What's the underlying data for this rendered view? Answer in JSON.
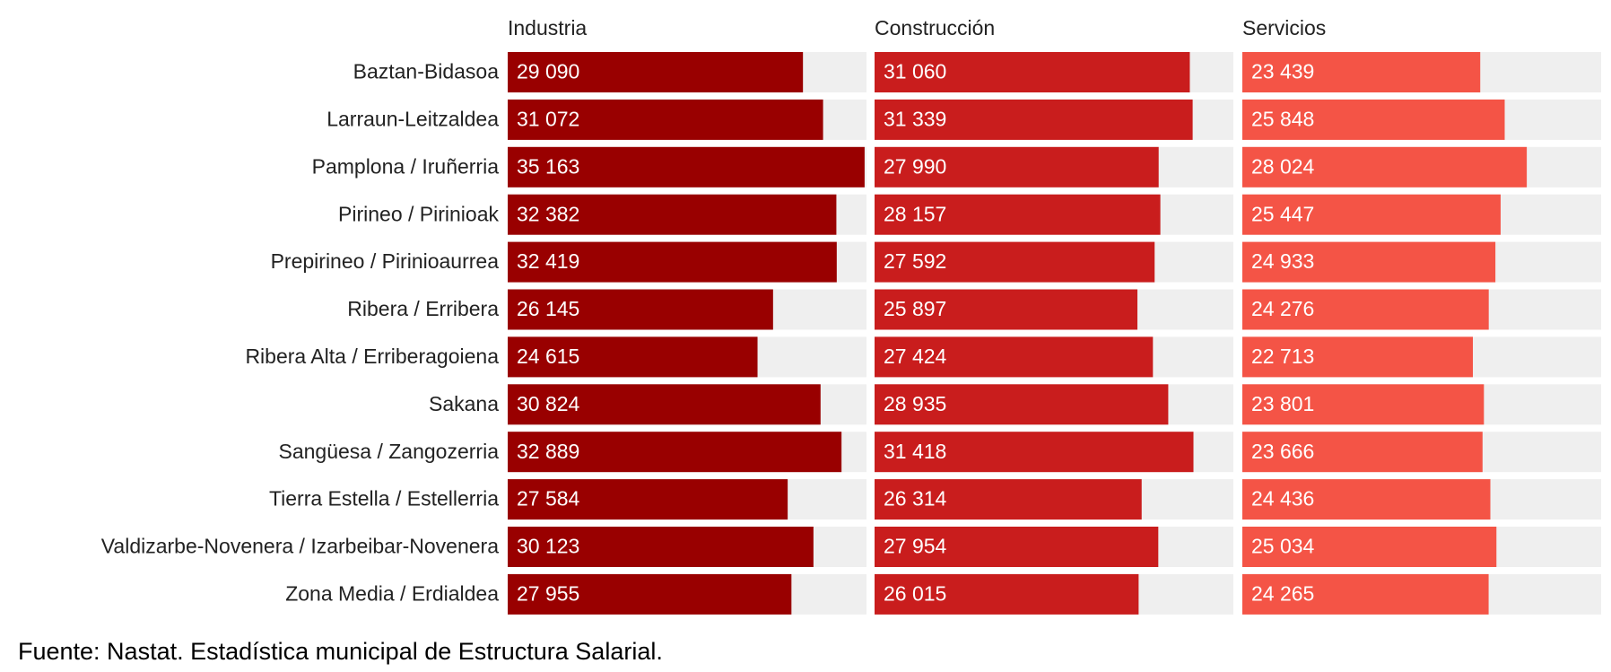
{
  "chart_data": {
    "type": "bar",
    "orientation": "horizontal",
    "categories": [
      "Baztan-Bidasoa",
      "Larraun-Leitzaldea",
      "Pamplona / Iruñerria",
      "Pirineo / Pirinioak",
      "Prepirineo / Pirinioaurrea",
      "Ribera / Erribera",
      "Ribera Alta / Erriberagoiena",
      "Sakana",
      "Sangüesa / Zangozerria",
      "Tierra Estella / Estellerria",
      "Valdizarbe-Novenera / Izarbeibar-Novenera",
      "Zona Media / Erdialdea"
    ],
    "series": [
      {
        "name": "Industria",
        "color": "#990000",
        "values": [
          29090,
          31072,
          35163,
          32382,
          32419,
          26145,
          24615,
          30824,
          32889,
          27584,
          30123,
          27955
        ],
        "value_labels": [
          "29 090",
          "31 072",
          "35 163",
          "32 382",
          "32 419",
          "26 145",
          "24 615",
          "30 824",
          "32 889",
          "27 584",
          "30 123",
          "27 955"
        ]
      },
      {
        "name": "Construcción",
        "color": "#c91d1d",
        "values": [
          31060,
          31339,
          27990,
          28157,
          27592,
          25897,
          27424,
          28935,
          31418,
          26314,
          27954,
          26015
        ],
        "value_labels": [
          "31 060",
          "31 339",
          "27 990",
          "28 157",
          "27 592",
          "25 897",
          "27 424",
          "28 935",
          "31 418",
          "26 314",
          "27 954",
          "26 015"
        ]
      },
      {
        "name": "Servicios",
        "color": "#f45446",
        "values": [
          23439,
          25848,
          28024,
          25447,
          24933,
          24276,
          22713,
          23801,
          23666,
          24436,
          25034,
          24265
        ],
        "value_labels": [
          "23 439",
          "25 848",
          "28 024",
          "25 447",
          "24 933",
          "24 276",
          "22 713",
          "23 801",
          "23 666",
          "24 436",
          "25 034",
          "24 265"
        ]
      }
    ],
    "xlim": [
      0,
      35350
    ],
    "source": "Fuente: Nastat. Estadística municipal de Estructura Salarial."
  }
}
